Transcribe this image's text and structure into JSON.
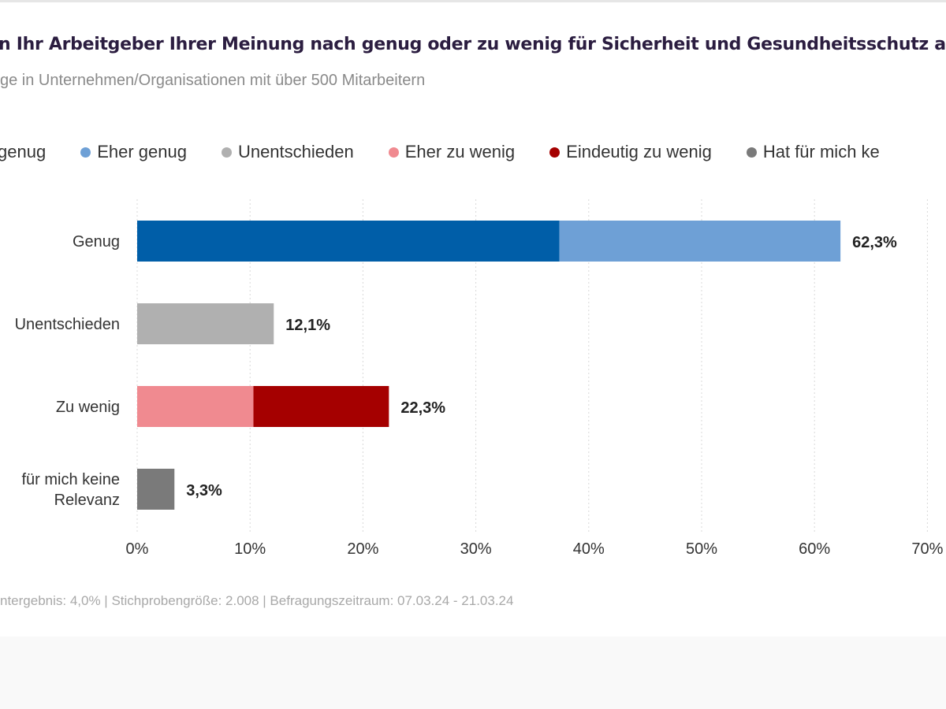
{
  "title": "n Ihr Arbeitgeber Ihrer Meinung nach genug oder zu wenig für Sicherheit und Gesundheitsschutz am A",
  "subtitle": "ge in Unternehmen/Organisationen mit über 500 Mitarbeitern",
  "legend": [
    {
      "label": "genug",
      "color": "#005ea8",
      "partial": true
    },
    {
      "label": "Eher genug",
      "color": "#6ea0d6"
    },
    {
      "label": "Unentschieden",
      "color": "#b0b0b0"
    },
    {
      "label": "Eher zu wenig",
      "color": "#f08a90"
    },
    {
      "label": "Eindeutig zu wenig",
      "color": "#a50000"
    },
    {
      "label": "Hat für mich ke",
      "color": "#7a7a7a"
    }
  ],
  "footer": "ntergebnis: 4,0% | Stichprobengröße: 2.008 | Befragungszeitraum: 07.03.24 - 21.03.24",
  "chart_data": {
    "type": "bar",
    "orientation": "horizontal",
    "stacked": true,
    "categories": [
      [
        "Genug"
      ],
      [
        "Unentschieden"
      ],
      [
        "Zu wenig"
      ],
      [
        "für mich keine",
        "Relevanz"
      ]
    ],
    "totals_labels": [
      "62,3%",
      "12,1%",
      "22,3%",
      "3,3%"
    ],
    "segments": [
      [
        {
          "series": 0,
          "value": 37.4
        },
        {
          "series": 1,
          "value": 24.9
        }
      ],
      [
        {
          "series": 2,
          "value": 12.1
        }
      ],
      [
        {
          "series": 3,
          "value": 10.3
        },
        {
          "series": 4,
          "value": 12.0
        }
      ],
      [
        {
          "series": 5,
          "value": 3.3
        }
      ]
    ],
    "xlim": [
      0,
      70
    ],
    "xticks": [
      0,
      10,
      20,
      30,
      40,
      50,
      60,
      70
    ],
    "xtick_labels": [
      "0%",
      "10%",
      "20%",
      "30%",
      "40%",
      "50%",
      "60%",
      "70%"
    ],
    "grid": "vertical dotted",
    "legend_position": "top"
  }
}
